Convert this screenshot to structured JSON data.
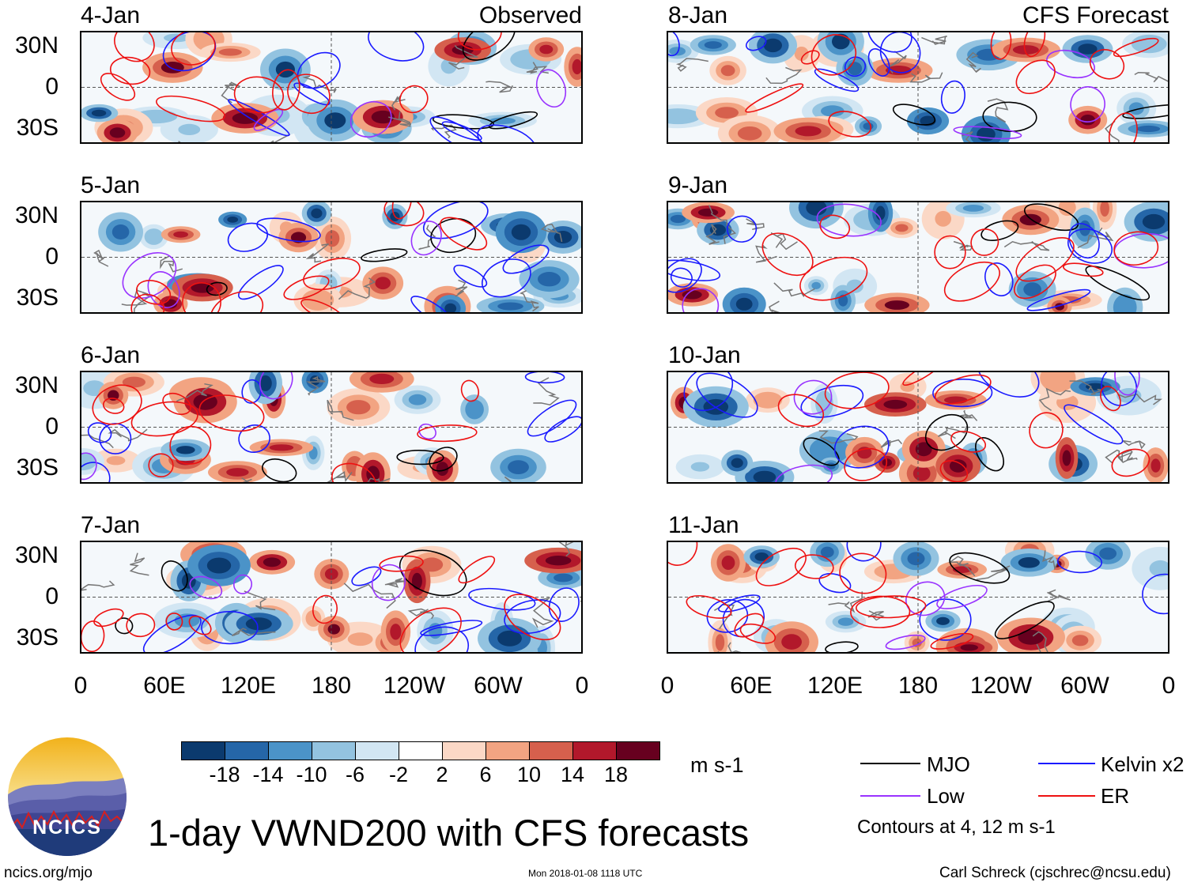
{
  "chart_data": {
    "type": "heatmap",
    "title": "1-day VWND200 with CFS forecasts",
    "variable": "VWND200",
    "units": "m s-1",
    "observed_label": "Observed",
    "forecast_label": "CFS Forecast",
    "panels_observed": [
      "4-Jan",
      "5-Jan",
      "6-Jan",
      "7-Jan"
    ],
    "panels_forecast": [
      "8-Jan",
      "9-Jan",
      "10-Jan",
      "11-Jan"
    ],
    "y_ticks": [
      "30N",
      "0",
      "30S"
    ],
    "x_ticks": [
      "0",
      "60E",
      "120E",
      "180",
      "120W",
      "60W",
      "0"
    ],
    "lon_range": [
      0,
      360
    ],
    "lat_range": [
      -40,
      40
    ],
    "colorbar": {
      "ticks": [
        "-18",
        "-14",
        "-10",
        "-6",
        "-2",
        "2",
        "6",
        "10",
        "14",
        "18"
      ],
      "colors": [
        "#0b3a6e",
        "#2566a8",
        "#4b93c8",
        "#93c3e0",
        "#d2e6f3",
        "#ffffff",
        "#fbd8c6",
        "#f2a482",
        "#d6604d",
        "#b2182b",
        "#67001f"
      ]
    },
    "contour_legend": [
      {
        "name": "MJO",
        "color": "#000000"
      },
      {
        "name": "Kelvin x2",
        "color": "#1a1aff"
      },
      {
        "name": "Low",
        "color": "#9933ff"
      },
      {
        "name": "ER",
        "color": "#ee1111"
      }
    ],
    "contour_note": "Contours at 4, 12 m s-1"
  },
  "branding": {
    "logo_text": "NCICS",
    "website": "ncics.org/mjo",
    "timestamp": "Mon 2018-01-08 1118 UTC",
    "credit": "Carl Schreck (cjschrec@ncsu.edu)"
  }
}
